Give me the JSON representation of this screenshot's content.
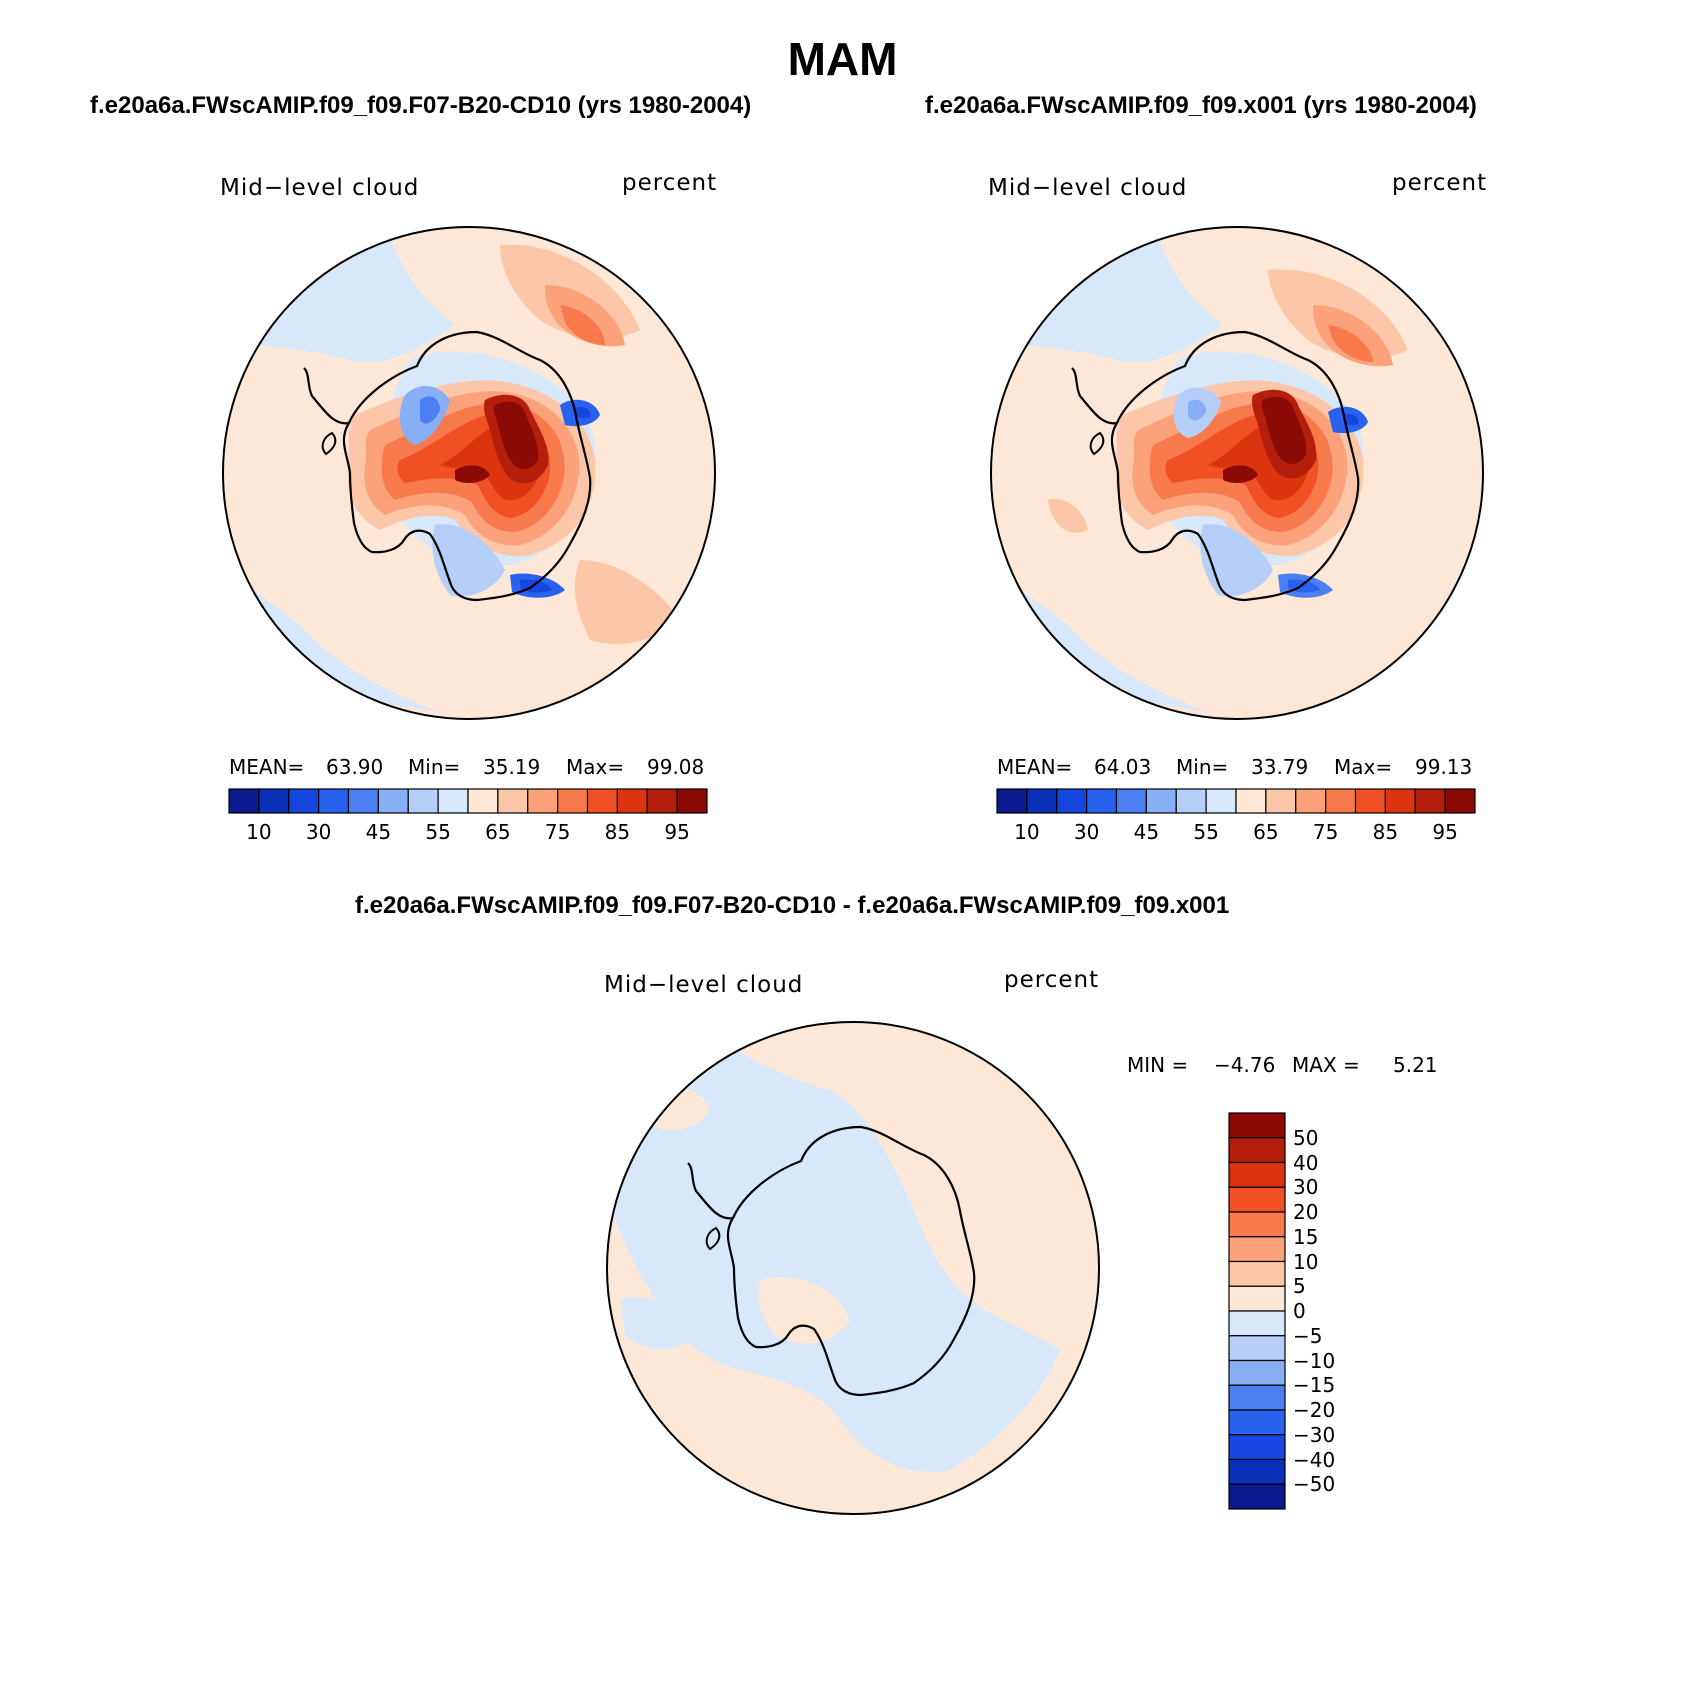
{
  "figure": {
    "title": "MAM"
  },
  "panels": [
    {
      "id": "case",
      "case_title": "f.e20a6a.FWscAMIP.f09_f09.F07-B20-CD10 (yrs 1980-2004)",
      "variable_label": "Mid−level cloud",
      "units_label": "percent",
      "stats": {
        "mean_label": "MEAN=",
        "mean": "63.90",
        "min_label": "Min=",
        "min": "35.19",
        "max_label": "Max=",
        "max": "99.08"
      }
    },
    {
      "id": "control",
      "case_title": "f.e20a6a.FWscAMIP.f09_f09.x001 (yrs 1980-2004)",
      "variable_label": "Mid−level cloud",
      "units_label": "percent",
      "stats": {
        "mean_label": "MEAN=",
        "mean": "64.03",
        "min_label": "Min=",
        "min": "33.79",
        "max_label": "Max=",
        "max": "99.13"
      }
    }
  ],
  "diff_panel": {
    "title": "f.e20a6a.FWscAMIP.f09_f09.F07-B20-CD10 - f.e20a6a.FWscAMIP.f09_f09.x001",
    "variable_label": "Mid−level cloud",
    "units_label": "percent",
    "stats": {
      "min_label": "MIN =",
      "min": "−4.76",
      "max_label": "MAX =",
      "max": "5.21"
    }
  },
  "chart_data": [
    {
      "type": "heatmap",
      "projection": "south polar stereographic",
      "title": "Mid−level cloud",
      "units": "percent",
      "summary": {
        "mean": 63.9,
        "min": 35.19,
        "max": 99.08
      },
      "colorbar": {
        "orientation": "horizontal",
        "tick_labels": [
          "10",
          "30",
          "45",
          "55",
          "65",
          "75",
          "85",
          "95"
        ],
        "colors": [
          "#0b1a8c",
          "#0a2fb8",
          "#1546e0",
          "#2a62f0",
          "#4c80f2",
          "#88aef5",
          "#b5cff9",
          "#d8e8fb",
          "#fde7d6",
          "#fcc7a8",
          "#fba27a",
          "#f7794c",
          "#f05024",
          "#dd3410",
          "#b41f0c",
          "#8c0a06"
        ]
      }
    },
    {
      "type": "heatmap",
      "projection": "south polar stereographic",
      "title": "Mid−level cloud",
      "units": "percent",
      "summary": {
        "mean": 64.03,
        "min": 33.79,
        "max": 99.13
      },
      "colorbar": {
        "orientation": "horizontal",
        "tick_labels": [
          "10",
          "30",
          "45",
          "55",
          "65",
          "75",
          "85",
          "95"
        ],
        "colors": [
          "#0b1a8c",
          "#0a2fb8",
          "#1546e0",
          "#2a62f0",
          "#4c80f2",
          "#88aef5",
          "#b5cff9",
          "#d8e8fb",
          "#fde7d6",
          "#fcc7a8",
          "#fba27a",
          "#f7794c",
          "#f05024",
          "#dd3410",
          "#b41f0c",
          "#8c0a06"
        ]
      }
    },
    {
      "type": "heatmap",
      "projection": "south polar stereographic",
      "title": "Mid−level cloud",
      "units": "percent",
      "summary": {
        "min": -4.76,
        "max": 5.21
      },
      "colorbar": {
        "orientation": "vertical",
        "tick_labels": [
          "50",
          "40",
          "30",
          "20",
          "15",
          "10",
          "5",
          "0",
          "−5",
          "−10",
          "−15",
          "−20",
          "−30",
          "−40",
          "−50"
        ],
        "colors": [
          "#8c0a06",
          "#b41f0c",
          "#dd3410",
          "#f05024",
          "#f7794c",
          "#fba27a",
          "#fcc7a8",
          "#fde7d6",
          "#d8e8fb",
          "#b5cff9",
          "#88aef5",
          "#4c80f2",
          "#2a62f0",
          "#1546e0",
          "#0a2fb8",
          "#0b1a8c"
        ]
      }
    }
  ]
}
